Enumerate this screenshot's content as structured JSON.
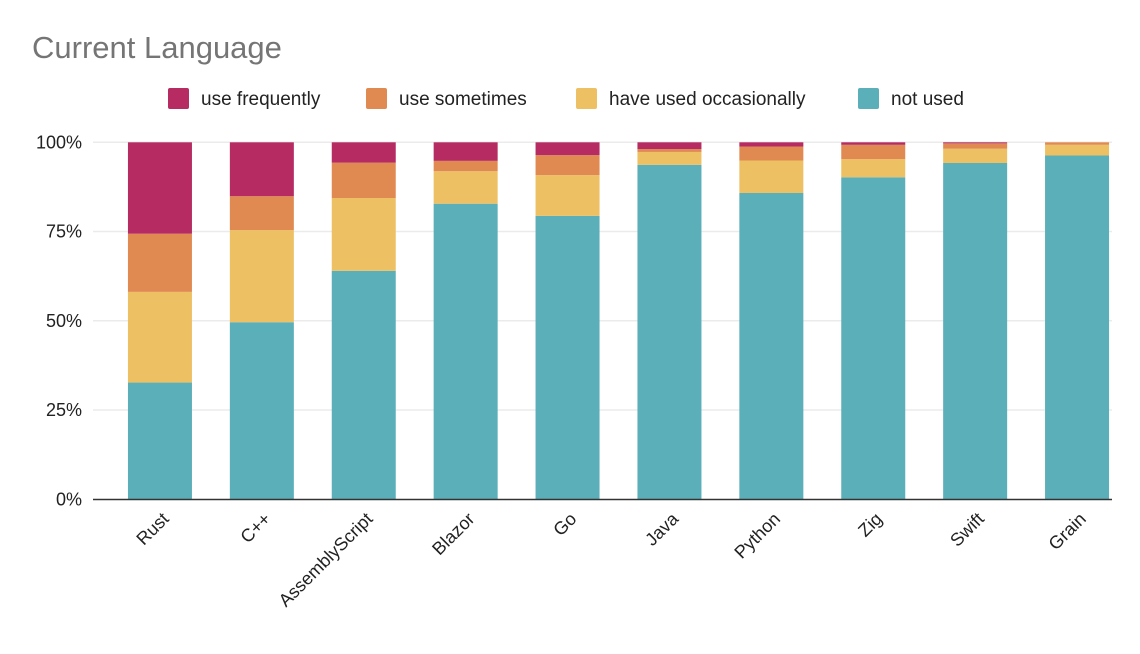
{
  "chart_data": {
    "type": "bar",
    "stacked": "percent",
    "title": "Current Language",
    "xlabel": "",
    "ylabel": "",
    "ylim": [
      0,
      100
    ],
    "yticks": [
      "0%",
      "25%",
      "50%",
      "75%",
      "100%"
    ],
    "grid": true,
    "legend_position": "top",
    "categories": [
      "Rust",
      "C++",
      "AssemblyScript",
      "Blazor",
      "Go",
      "Java",
      "Python",
      "Zig",
      "Swift",
      "Grain"
    ],
    "series": [
      {
        "name": "not used",
        "color": "#5aafb9",
        "values": [
          32.7,
          49.6,
          64.0,
          82.8,
          79.4,
          93.7,
          85.8,
          90.2,
          94.2,
          96.3
        ]
      },
      {
        "name": "have used occasionally",
        "color": "#eec064",
        "values": [
          25.4,
          25.8,
          20.4,
          9.1,
          11.4,
          3.6,
          9.1,
          5.1,
          4.0,
          3.0
        ]
      },
      {
        "name": "use sometimes",
        "color": "#e08a52",
        "values": [
          16.3,
          9.5,
          9.9,
          2.9,
          5.6,
          0.8,
          3.9,
          4.0,
          1.5,
          0.7
        ]
      },
      {
        "name": "use frequently",
        "color": "#b52b62",
        "values": [
          25.6,
          15.1,
          5.7,
          5.2,
          3.6,
          1.9,
          1.2,
          0.7,
          0.3,
          0.0
        ]
      }
    ],
    "legend_order": [
      "use frequently",
      "use sometimes",
      "have used occasionally",
      "not used"
    ]
  }
}
